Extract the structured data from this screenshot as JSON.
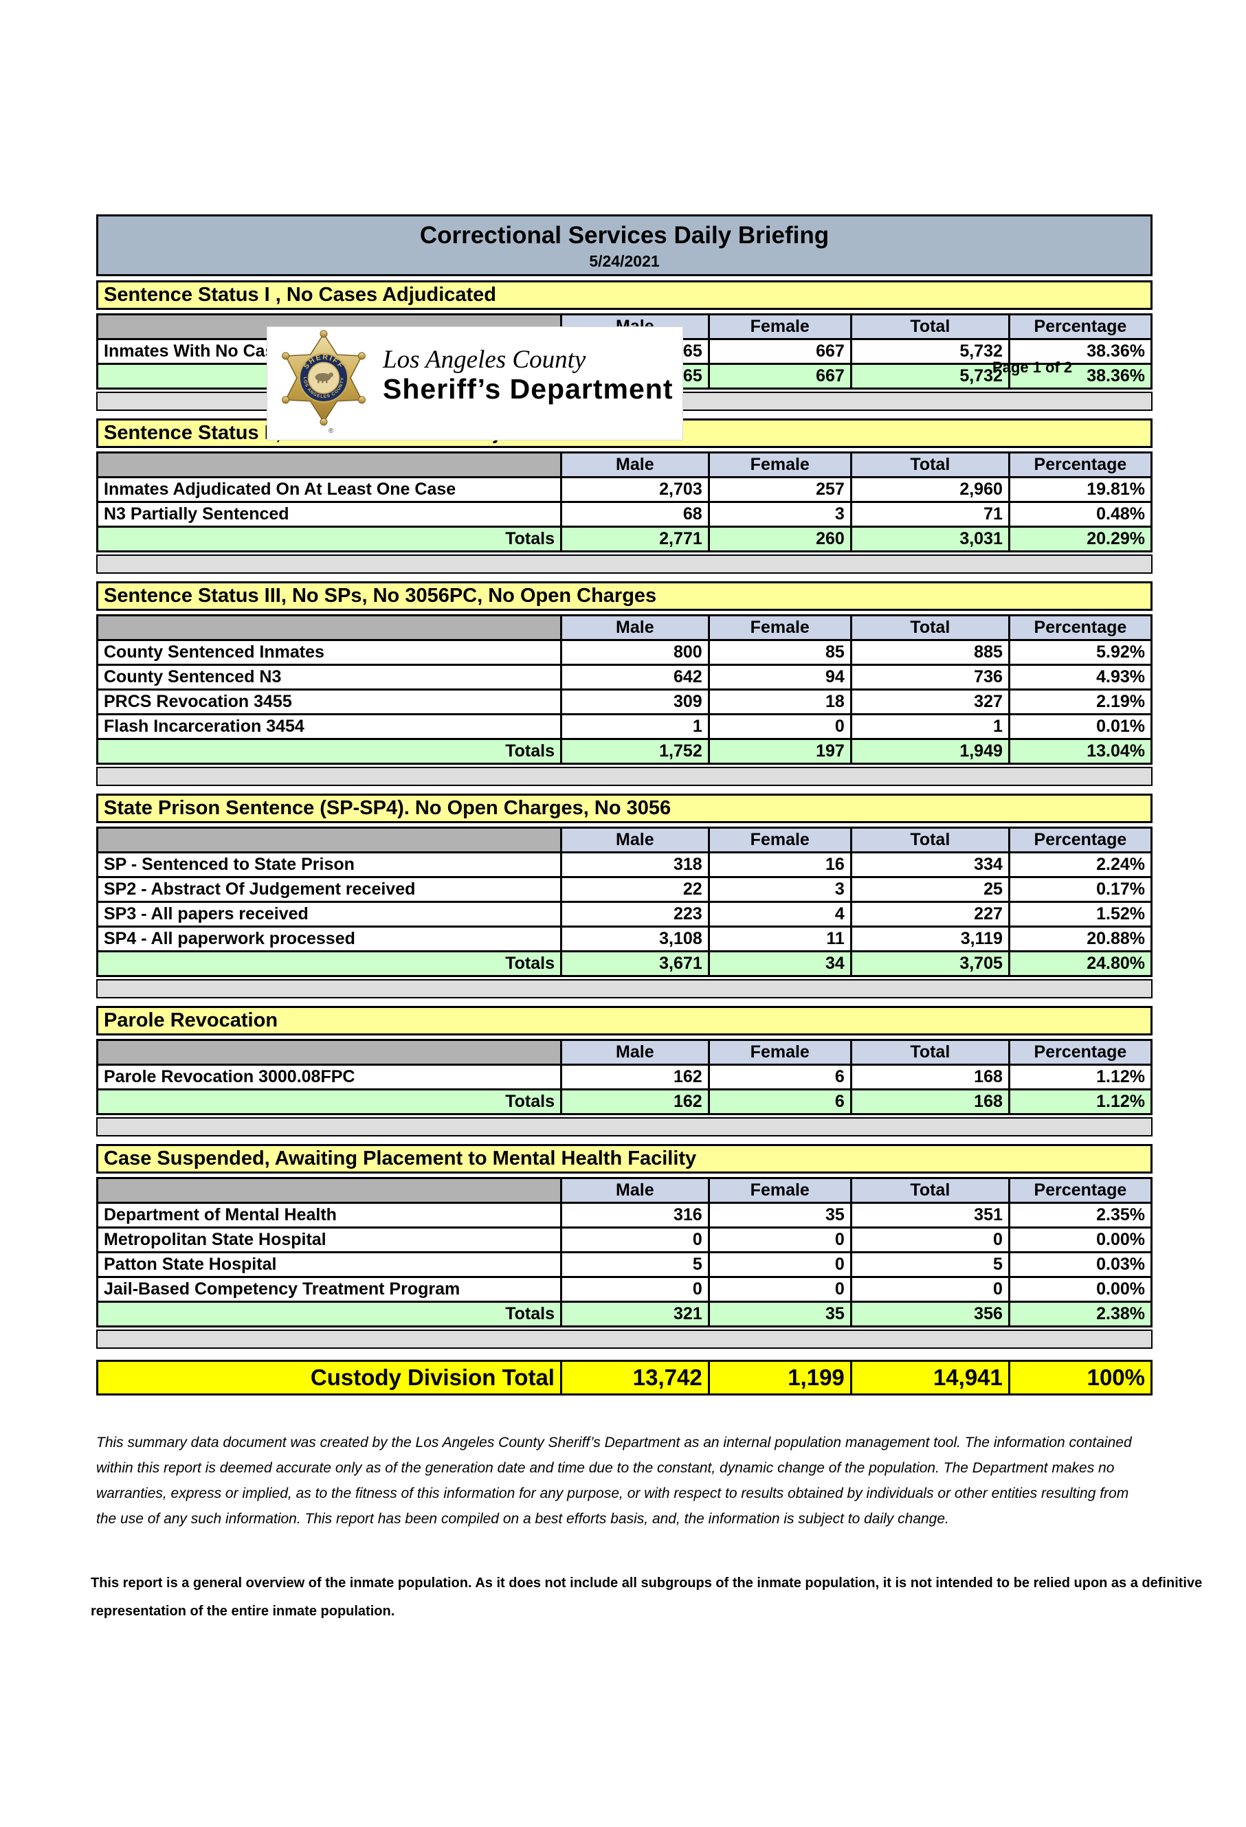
{
  "page": {
    "page_label": "Page 1 of 2"
  },
  "header": {
    "logo_line1": "Los Angeles County",
    "logo_line2": "Sheriff’s Department",
    "badge": {
      "top_text": "SHERIFF",
      "bottom_text": "LOS ANGELES COUNTY",
      "registered_mark": "®"
    }
  },
  "title": {
    "main": "Correctional Services Daily Briefing",
    "date": "5/24/2021"
  },
  "columns": [
    "Male",
    "Female",
    "Total",
    "Percentage"
  ],
  "totals_label": "Totals",
  "sections": [
    {
      "title": "Sentence Status I , No Cases Adjudicated",
      "rows": [
        {
          "label": "Inmates With No Cases Adjudicated",
          "male": "5,065",
          "female": "667",
          "total": "5,732",
          "percentage": "38.36%"
        }
      ],
      "totals": {
        "male": "5,065",
        "female": "667",
        "total": "5,732",
        "percentage": "38.36%"
      }
    },
    {
      "title": "Sentence Status II, At Least One Case Adjudicated",
      "rows": [
        {
          "label": "Inmates Adjudicated On At Least One Case",
          "male": "2,703",
          "female": "257",
          "total": "2,960",
          "percentage": "19.81%"
        },
        {
          "label": "N3 Partially Sentenced",
          "male": "68",
          "female": "3",
          "total": "71",
          "percentage": "0.48%"
        }
      ],
      "totals": {
        "male": "2,771",
        "female": "260",
        "total": "3,031",
        "percentage": "20.29%"
      }
    },
    {
      "title": "Sentence Status III, No SPs, No 3056PC, No Open Charges",
      "rows": [
        {
          "label": "County Sentenced Inmates",
          "male": "800",
          "female": "85",
          "total": "885",
          "percentage": "5.92%"
        },
        {
          "label": "County Sentenced N3",
          "male": "642",
          "female": "94",
          "total": "736",
          "percentage": "4.93%"
        },
        {
          "label": "PRCS Revocation 3455",
          "male": "309",
          "female": "18",
          "total": "327",
          "percentage": "2.19%"
        },
        {
          "label": "Flash Incarceration 3454",
          "male": "1",
          "female": "0",
          "total": "1",
          "percentage": "0.01%"
        }
      ],
      "totals": {
        "male": "1,752",
        "female": "197",
        "total": "1,949",
        "percentage": "13.04%"
      }
    },
    {
      "title": "State Prison Sentence (SP-SP4). No Open Charges, No 3056",
      "rows": [
        {
          "label": "SP - Sentenced to State Prison",
          "male": "318",
          "female": "16",
          "total": "334",
          "percentage": "2.24%"
        },
        {
          "label": "SP2 - Abstract Of Judgement received",
          "male": "22",
          "female": "3",
          "total": "25",
          "percentage": "0.17%"
        },
        {
          "label": "SP3 - All papers received",
          "male": "223",
          "female": "4",
          "total": "227",
          "percentage": "1.52%"
        },
        {
          "label": "SP4 - All paperwork processed",
          "male": "3,108",
          "female": "11",
          "total": "3,119",
          "percentage": "20.88%"
        }
      ],
      "totals": {
        "male": "3,671",
        "female": "34",
        "total": "3,705",
        "percentage": "24.80%"
      }
    },
    {
      "title": "Parole Revocation",
      "rows": [
        {
          "label": "Parole Revocation 3000.08FPC",
          "male": "162",
          "female": "6",
          "total": "168",
          "percentage": "1.12%"
        }
      ],
      "totals": {
        "male": "162",
        "female": "6",
        "total": "168",
        "percentage": "1.12%"
      }
    },
    {
      "title": "Case Suspended, Awaiting Placement to Mental Health Facility",
      "rows": [
        {
          "label": "Department of Mental Health",
          "male": "316",
          "female": "35",
          "total": "351",
          "percentage": "2.35%"
        },
        {
          "label": "Metropolitan State Hospital",
          "male": "0",
          "female": "0",
          "total": "0",
          "percentage": "0.00%"
        },
        {
          "label": "Patton State Hospital",
          "male": "5",
          "female": "0",
          "total": "5",
          "percentage": "0.03%"
        },
        {
          "label": "Jail-Based Competency Treatment Program",
          "male": "0",
          "female": "0",
          "total": "0",
          "percentage": "0.00%"
        }
      ],
      "totals": {
        "male": "321",
        "female": "35",
        "total": "356",
        "percentage": "2.38%"
      }
    }
  ],
  "grand_total": {
    "label": "Custody Division Total",
    "male": "13,742",
    "female": "1,199",
    "total": "14,941",
    "percentage": "100%"
  },
  "footnotes": {
    "disclaimer": "This summary data document was created by the Los Angeles County Sheriff’s Department as an internal population management tool.  The information contained within this report is deemed accurate only as of the generation date and time due to the constant, dynamic change of the population.  The Department makes no warranties, express or implied, as to the fitness of this information for any purpose, or with respect to results obtained by individuals or other entities resulting from the use of any such information.  This report has been compiled on a best efforts basis, and, the information is subject to daily change.",
    "note": "This report is a general overview of the inmate population.  As it does not include all subgroups of the inmate population, it is not intended to be relied upon as a definitive representation of the entire inmate population."
  },
  "colors": {
    "title_bar": "#a9b8c9",
    "section_header": "#ffff99",
    "column_header": "#ccd4e8",
    "totals_row": "#ccffcc",
    "spacer_band": "#dedede",
    "corner_cell": "#b2b2b2",
    "grand_total_row": "#ffff00",
    "badge_gold": "#caa74f",
    "badge_navy": "#1c2d5e"
  }
}
